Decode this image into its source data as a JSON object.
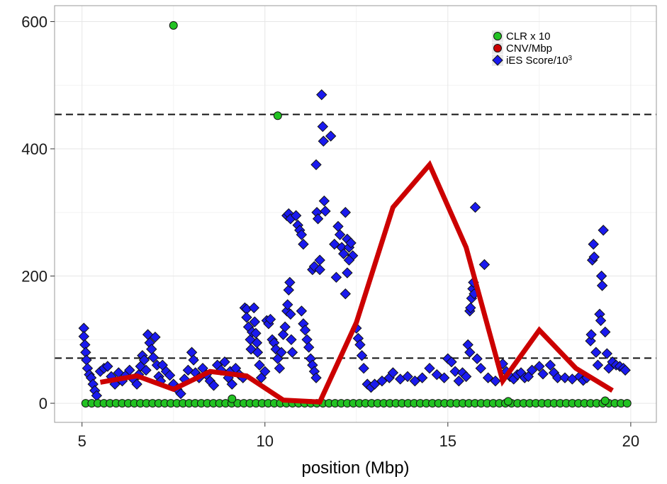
{
  "chart_data": {
    "type": "scatter",
    "xlabel": "position (Mbp)",
    "ylabel": "",
    "xlim": [
      4.25,
      20.7
    ],
    "ylim": [
      -30,
      625
    ],
    "xticks": [
      5,
      10,
      15,
      20
    ],
    "xtick_labels": [
      "5",
      "10",
      "15",
      "20"
    ],
    "yticks": [
      0,
      200,
      400,
      600
    ],
    "ytick_labels": [
      "0",
      "200",
      "400",
      "600"
    ],
    "grid": true,
    "legend_position": "top-right",
    "reference_lines": [
      {
        "y": 454,
        "style": "dashed"
      },
      {
        "y": 71,
        "style": "dashed"
      }
    ],
    "colors": {
      "clr": "#22c222",
      "cnv": "#cc0000",
      "ies": "#1a1aee",
      "panel_border": "#9a9a9a",
      "grid_major": "#e6e6e6",
      "grid_minor": "#f3f3f3"
    },
    "legend": [
      {
        "label": "CLR x 10",
        "marker": "circle",
        "color": "#22c222"
      },
      {
        "label": "CNV/Mbp",
        "marker": "circle",
        "color": "#cc0000"
      },
      {
        "label": "iES Score/10",
        "superscript": "3",
        "marker": "diamond",
        "color": "#1a1aee"
      }
    ],
    "series": [
      {
        "key": "ies",
        "type": "scatter",
        "marker": "diamond",
        "points": [
          [
            5.05,
            118
          ],
          [
            5.05,
            105
          ],
          [
            5.08,
            92
          ],
          [
            5.1,
            80
          ],
          [
            5.12,
            68
          ],
          [
            5.15,
            55
          ],
          [
            5.2,
            45
          ],
          [
            5.25,
            40
          ],
          [
            5.3,
            30
          ],
          [
            5.35,
            20
          ],
          [
            5.4,
            12
          ],
          [
            5.5,
            50
          ],
          [
            5.6,
            55
          ],
          [
            5.7,
            58
          ],
          [
            5.8,
            42
          ],
          [
            5.9,
            30
          ],
          [
            6.0,
            48
          ],
          [
            6.1,
            35
          ],
          [
            6.2,
            44
          ],
          [
            6.3,
            52
          ],
          [
            6.4,
            38
          ],
          [
            6.5,
            30
          ],
          [
            6.55,
            45
          ],
          [
            6.6,
            58
          ],
          [
            6.65,
            75
          ],
          [
            6.7,
            68
          ],
          [
            6.75,
            52
          ],
          [
            6.8,
            108
          ],
          [
            6.85,
            95
          ],
          [
            6.9,
            85
          ],
          [
            6.95,
            72
          ],
          [
            7.0,
            104
          ],
          [
            7.05,
            60
          ],
          [
            7.1,
            42
          ],
          [
            7.15,
            35
          ],
          [
            7.2,
            60
          ],
          [
            7.3,
            50
          ],
          [
            7.4,
            44
          ],
          [
            7.5,
            30
          ],
          [
            7.6,
            22
          ],
          [
            7.7,
            15
          ],
          [
            7.8,
            38
          ],
          [
            7.9,
            52
          ],
          [
            8.0,
            80
          ],
          [
            8.05,
            68
          ],
          [
            8.1,
            48
          ],
          [
            8.2,
            40
          ],
          [
            8.3,
            55
          ],
          [
            8.4,
            45
          ],
          [
            8.5,
            35
          ],
          [
            8.6,
            28
          ],
          [
            8.7,
            60
          ],
          [
            8.8,
            52
          ],
          [
            8.9,
            65
          ],
          [
            9.0,
            40
          ],
          [
            9.05,
            50
          ],
          [
            9.1,
            30
          ],
          [
            9.2,
            55
          ],
          [
            9.3,
            45
          ],
          [
            9.4,
            40
          ],
          [
            9.45,
            150
          ],
          [
            9.5,
            148
          ],
          [
            9.5,
            135
          ],
          [
            9.55,
            120
          ],
          [
            9.6,
            100
          ],
          [
            9.62,
            85
          ],
          [
            9.65,
            112
          ],
          [
            9.7,
            150
          ],
          [
            9.72,
            128
          ],
          [
            9.75,
            110
          ],
          [
            9.78,
            95
          ],
          [
            9.8,
            80
          ],
          [
            9.85,
            60
          ],
          [
            9.9,
            40
          ],
          [
            10.0,
            50
          ],
          [
            10.05,
            130
          ],
          [
            10.1,
            125
          ],
          [
            10.15,
            132
          ],
          [
            10.2,
            100
          ],
          [
            10.25,
            95
          ],
          [
            10.3,
            85
          ],
          [
            10.35,
            70
          ],
          [
            10.4,
            55
          ],
          [
            10.45,
            80
          ],
          [
            10.5,
            108
          ],
          [
            10.55,
            120
          ],
          [
            10.6,
            145
          ],
          [
            10.62,
            155
          ],
          [
            10.65,
            178
          ],
          [
            10.68,
            190
          ],
          [
            10.7,
            140
          ],
          [
            10.72,
            100
          ],
          [
            10.75,
            80
          ],
          [
            10.6,
            295
          ],
          [
            10.65,
            298
          ],
          [
            10.7,
            290
          ],
          [
            10.85,
            295
          ],
          [
            10.9,
            280
          ],
          [
            10.95,
            272
          ],
          [
            11.0,
            265
          ],
          [
            11.05,
            250
          ],
          [
            11.0,
            145
          ],
          [
            11.05,
            125
          ],
          [
            11.1,
            115
          ],
          [
            11.15,
            100
          ],
          [
            11.2,
            88
          ],
          [
            11.25,
            70
          ],
          [
            11.3,
            60
          ],
          [
            11.35,
            50
          ],
          [
            11.4,
            40
          ],
          [
            11.3,
            210
          ],
          [
            11.35,
            215
          ],
          [
            11.4,
            375
          ],
          [
            11.42,
            300
          ],
          [
            11.45,
            290
          ],
          [
            11.5,
            225
          ],
          [
            11.5,
            210
          ],
          [
            11.55,
            485
          ],
          [
            11.58,
            435
          ],
          [
            11.6,
            412
          ],
          [
            11.62,
            318
          ],
          [
            11.65,
            302
          ],
          [
            11.8,
            420
          ],
          [
            11.9,
            250
          ],
          [
            11.95,
            198
          ],
          [
            12.0,
            278
          ],
          [
            12.05,
            265
          ],
          [
            12.1,
            245
          ],
          [
            12.15,
            235
          ],
          [
            12.2,
            300
          ],
          [
            12.25,
            258
          ],
          [
            12.3,
            245
          ],
          [
            12.35,
            252
          ],
          [
            12.4,
            232
          ],
          [
            12.2,
            172
          ],
          [
            12.25,
            205
          ],
          [
            12.3,
            225
          ],
          [
            12.5,
            118
          ],
          [
            12.55,
            102
          ],
          [
            12.6,
            92
          ],
          [
            12.65,
            75
          ],
          [
            12.7,
            55
          ],
          [
            12.8,
            30
          ],
          [
            12.9,
            25
          ],
          [
            13.0,
            30
          ],
          [
            13.2,
            35
          ],
          [
            13.4,
            40
          ],
          [
            13.5,
            48
          ],
          [
            13.7,
            38
          ],
          [
            13.9,
            42
          ],
          [
            14.1,
            35
          ],
          [
            14.3,
            40
          ],
          [
            14.5,
            55
          ],
          [
            14.7,
            45
          ],
          [
            14.9,
            40
          ],
          [
            15.0,
            70
          ],
          [
            15.1,
            65
          ],
          [
            15.2,
            50
          ],
          [
            15.3,
            35
          ],
          [
            15.4,
            48
          ],
          [
            15.5,
            42
          ],
          [
            15.55,
            92
          ],
          [
            15.6,
            80
          ],
          [
            15.6,
            145
          ],
          [
            15.62,
            150
          ],
          [
            15.65,
            165
          ],
          [
            15.68,
            180
          ],
          [
            15.7,
            190
          ],
          [
            15.72,
            172
          ],
          [
            15.75,
            308
          ],
          [
            15.8,
            70
          ],
          [
            15.9,
            55
          ],
          [
            16.0,
            218
          ],
          [
            16.1,
            40
          ],
          [
            16.3,
            35
          ],
          [
            16.5,
            62
          ],
          [
            16.6,
            50
          ],
          [
            16.7,
            42
          ],
          [
            16.8,
            38
          ],
          [
            16.9,
            45
          ],
          [
            17.0,
            48
          ],
          [
            17.1,
            40
          ],
          [
            17.2,
            42
          ],
          [
            17.3,
            52
          ],
          [
            17.5,
            58
          ],
          [
            17.6,
            46
          ],
          [
            17.8,
            60
          ],
          [
            17.9,
            48
          ],
          [
            18.0,
            40
          ],
          [
            18.2,
            40
          ],
          [
            18.4,
            38
          ],
          [
            18.6,
            42
          ],
          [
            18.7,
            36
          ],
          [
            18.8,
            40
          ],
          [
            18.9,
            98
          ],
          [
            18.92,
            108
          ],
          [
            18.95,
            225
          ],
          [
            18.98,
            250
          ],
          [
            19.0,
            230
          ],
          [
            19.05,
            80
          ],
          [
            19.1,
            60
          ],
          [
            19.15,
            140
          ],
          [
            19.18,
            130
          ],
          [
            19.2,
            200
          ],
          [
            19.22,
            185
          ],
          [
            19.25,
            272
          ],
          [
            19.3,
            112
          ],
          [
            19.35,
            78
          ],
          [
            19.4,
            55
          ],
          [
            19.5,
            65
          ],
          [
            19.6,
            60
          ],
          [
            19.7,
            58
          ],
          [
            19.8,
            55
          ],
          [
            19.85,
            52
          ]
        ]
      },
      {
        "key": "clr",
        "type": "scatter",
        "marker": "circle",
        "points": [
          [
            7.5,
            594
          ],
          [
            10.35,
            452
          ],
          [
            9.1,
            7
          ],
          [
            19.3,
            4
          ],
          [
            16.65,
            3
          ]
        ],
        "baseline_points": {
          "x_start": 5.1,
          "x_end": 19.9,
          "count": 90,
          "y": 0
        }
      },
      {
        "key": "cnv",
        "type": "line",
        "x": [
          5.5,
          6.5,
          7.5,
          8.5,
          9.5,
          10.5,
          11.5,
          12.5,
          13.5,
          14.5,
          15.5,
          16.5,
          17.5,
          18.5,
          19.5
        ],
        "y": [
          33,
          43,
          22,
          50,
          43,
          5,
          2,
          127,
          308,
          375,
          245,
          35,
          115,
          55,
          20
        ]
      }
    ]
  },
  "labels": {
    "xaxis_title": "position (Mbp)"
  }
}
